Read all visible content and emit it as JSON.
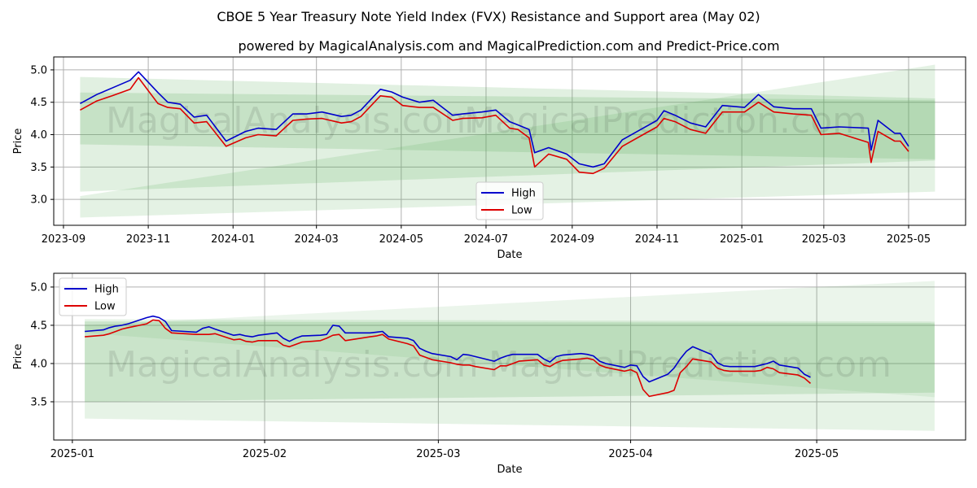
{
  "title": "CBOE 5 Year Treasury Note Yield Index (FVX) Resistance and Support area (May 02)",
  "subtitle": "powered by MagicalAnalysis.com and MagicalPrediction.com and Predict-Price.com",
  "watermark_left": "MagicalAnalysis.com",
  "watermark_right": "MagicalPrediction.com",
  "colors": {
    "high": "#0000cc",
    "low": "#dd0000",
    "band": "#5aac5a",
    "grid": "#b0b0b0"
  },
  "chart_data": [
    {
      "type": "line",
      "xlabel": "Date",
      "ylabel": "Price",
      "xlim": [
        "2023-08-25",
        "2025-06-11"
      ],
      "ylim": [
        2.6,
        5.2
      ],
      "yticks": [
        "3.0",
        "3.5",
        "4.0",
        "4.5",
        "5.0"
      ],
      "xticks": [
        {
          "date": "2023-09-01",
          "label": "2023-09"
        },
        {
          "date": "2023-11-01",
          "label": "2023-11"
        },
        {
          "date": "2024-01-01",
          "label": "2024-01"
        },
        {
          "date": "2024-03-01",
          "label": "2024-03"
        },
        {
          "date": "2024-05-01",
          "label": "2024-05"
        },
        {
          "date": "2024-07-01",
          "label": "2024-07"
        },
        {
          "date": "2024-09-01",
          "label": "2024-09"
        },
        {
          "date": "2024-11-01",
          "label": "2024-11"
        },
        {
          "date": "2025-01-01",
          "label": "2025-01"
        },
        {
          "date": "2025-03-01",
          "label": "2025-03"
        },
        {
          "date": "2025-05-01",
          "label": "2025-05"
        }
      ],
      "legend": {
        "position": "bottom-center",
        "entries": [
          "High",
          "Low"
        ]
      },
      "bands": [
        {
          "x": [
            "2023-09-13",
            "2025-05-20"
          ],
          "upper": [
            4.89,
            4.56
          ],
          "lower": [
            3.12,
            3.6
          ],
          "opacity": 0.18
        },
        {
          "x": [
            "2023-09-13",
            "2025-05-20"
          ],
          "upper": [
            4.65,
            4.53
          ],
          "lower": [
            3.85,
            3.62
          ],
          "opacity": 0.2
        },
        {
          "x": [
            "2023-09-13",
            "2025-05-20"
          ],
          "upper": [
            3.05,
            5.08
          ],
          "lower": [
            2.72,
            3.12
          ],
          "opacity": 0.16
        }
      ],
      "series": [
        {
          "name": "High",
          "x": [
            "2023-09-13",
            "2023-09-25",
            "2023-10-06",
            "2023-10-19",
            "2023-10-25",
            "2023-11-08",
            "2023-11-15",
            "2023-11-24",
            "2023-12-04",
            "2023-12-13",
            "2023-12-27",
            "2024-01-10",
            "2024-01-19",
            "2024-02-01",
            "2024-02-13",
            "2024-02-23",
            "2024-03-05",
            "2024-03-19",
            "2024-03-26",
            "2024-04-02",
            "2024-04-16",
            "2024-04-24",
            "2024-05-02",
            "2024-05-14",
            "2024-05-24",
            "2024-06-07",
            "2024-06-14",
            "2024-06-28",
            "2024-07-08",
            "2024-07-18",
            "2024-07-24",
            "2024-08-01",
            "2024-08-05",
            "2024-08-15",
            "2024-08-28",
            "2024-09-06",
            "2024-09-16",
            "2024-09-24",
            "2024-10-07",
            "2024-10-22",
            "2024-11-01",
            "2024-11-06",
            "2024-11-14",
            "2024-11-25",
            "2024-12-06",
            "2024-12-18",
            "2025-01-03",
            "2025-01-13",
            "2025-01-24",
            "2025-02-07",
            "2025-02-20",
            "2025-02-27",
            "2025-03-12",
            "2025-04-02",
            "2025-04-04",
            "2025-04-09",
            "2025-04-21",
            "2025-04-25",
            "2025-05-01"
          ],
          "values": [
            4.48,
            4.62,
            4.72,
            4.84,
            4.97,
            4.65,
            4.5,
            4.47,
            4.27,
            4.3,
            3.9,
            4.05,
            4.1,
            4.08,
            4.32,
            4.32,
            4.35,
            4.28,
            4.3,
            4.38,
            4.7,
            4.66,
            4.58,
            4.5,
            4.53,
            4.3,
            4.32,
            4.35,
            4.38,
            4.2,
            4.15,
            4.08,
            3.72,
            3.8,
            3.7,
            3.55,
            3.5,
            3.55,
            3.92,
            4.1,
            4.22,
            4.37,
            4.3,
            4.18,
            4.12,
            4.45,
            4.42,
            4.62,
            4.43,
            4.4,
            4.4,
            4.1,
            4.12,
            4.1,
            3.76,
            4.22,
            4.02,
            4.02,
            3.82
          ]
        },
        {
          "name": "Low",
          "x": [
            "2023-09-13",
            "2023-09-25",
            "2023-10-06",
            "2023-10-19",
            "2023-10-25",
            "2023-11-08",
            "2023-11-15",
            "2023-11-24",
            "2023-12-04",
            "2023-12-13",
            "2023-12-27",
            "2024-01-10",
            "2024-01-19",
            "2024-02-01",
            "2024-02-13",
            "2024-02-23",
            "2024-03-05",
            "2024-03-19",
            "2024-03-26",
            "2024-04-02",
            "2024-04-16",
            "2024-04-24",
            "2024-05-02",
            "2024-05-14",
            "2024-05-24",
            "2024-06-07",
            "2024-06-14",
            "2024-06-28",
            "2024-07-08",
            "2024-07-18",
            "2024-07-24",
            "2024-08-01",
            "2024-08-05",
            "2024-08-15",
            "2024-08-28",
            "2024-09-06",
            "2024-09-16",
            "2024-09-24",
            "2024-10-07",
            "2024-10-22",
            "2024-11-01",
            "2024-11-06",
            "2024-11-14",
            "2024-11-25",
            "2024-12-06",
            "2024-12-18",
            "2025-01-03",
            "2025-01-13",
            "2025-01-24",
            "2025-02-07",
            "2025-02-20",
            "2025-02-27",
            "2025-03-12",
            "2025-04-02",
            "2025-04-04",
            "2025-04-09",
            "2025-04-21",
            "2025-04-25",
            "2025-05-01"
          ],
          "values": [
            4.38,
            4.52,
            4.6,
            4.7,
            4.88,
            4.48,
            4.42,
            4.4,
            4.18,
            4.2,
            3.82,
            3.95,
            4.0,
            3.98,
            4.22,
            4.24,
            4.25,
            4.18,
            4.2,
            4.28,
            4.6,
            4.58,
            4.45,
            4.42,
            4.42,
            4.22,
            4.25,
            4.26,
            4.3,
            4.1,
            4.08,
            3.95,
            3.5,
            3.7,
            3.62,
            3.42,
            3.4,
            3.48,
            3.82,
            4.0,
            4.12,
            4.25,
            4.2,
            4.08,
            4.02,
            4.35,
            4.35,
            4.5,
            4.35,
            4.32,
            4.3,
            4.0,
            4.02,
            3.88,
            3.57,
            4.05,
            3.9,
            3.9,
            3.74
          ]
        }
      ]
    },
    {
      "type": "line",
      "xlabel": "Date",
      "ylabel": "Price",
      "xlim": [
        "2024-12-29",
        "2025-05-25"
      ],
      "ylim": [
        3.0,
        5.18
      ],
      "yticks": [
        "3.5",
        "4.0",
        "4.5",
        "5.0"
      ],
      "xticks": [
        {
          "date": "2025-01-01",
          "label": "2025-01"
        },
        {
          "date": "2025-02-01",
          "label": "2025-02"
        },
        {
          "date": "2025-03-01",
          "label": "2025-03"
        },
        {
          "date": "2025-04-01",
          "label": "2025-04"
        },
        {
          "date": "2025-05-01",
          "label": "2025-05"
        }
      ],
      "legend": {
        "position": "top-left",
        "entries": [
          "High",
          "Low"
        ]
      },
      "bands": [
        {
          "x": [
            "2025-01-03",
            "2025-05-20"
          ],
          "upper": [
            4.58,
            4.55
          ],
          "lower": [
            3.28,
            3.12
          ],
          "opacity": 0.15
        },
        {
          "x": [
            "2025-01-03",
            "2025-05-20"
          ],
          "upper": [
            4.55,
            4.53
          ],
          "lower": [
            3.5,
            3.62
          ],
          "opacity": 0.2
        },
        {
          "x": [
            "2025-01-03",
            "2025-05-20"
          ],
          "upper": [
            4.5,
            5.08
          ],
          "lower": [
            4.4,
            3.56
          ],
          "opacity": 0.12
        }
      ],
      "series": [
        {
          "name": "High",
          "x": [
            "2025-01-03",
            "2025-01-06",
            "2025-01-07",
            "2025-01-08",
            "2025-01-09",
            "2025-01-10",
            "2025-01-13",
            "2025-01-14",
            "2025-01-15",
            "2025-01-16",
            "2025-01-17",
            "2025-01-21",
            "2025-01-22",
            "2025-01-23",
            "2025-01-24",
            "2025-01-27",
            "2025-01-28",
            "2025-01-29",
            "2025-01-30",
            "2025-01-31",
            "2025-02-03",
            "2025-02-04",
            "2025-02-05",
            "2025-02-06",
            "2025-02-07",
            "2025-02-10",
            "2025-02-11",
            "2025-02-12",
            "2025-02-13",
            "2025-02-14",
            "2025-02-18",
            "2025-02-19",
            "2025-02-20",
            "2025-02-21",
            "2025-02-24",
            "2025-02-25",
            "2025-02-26",
            "2025-02-27",
            "2025-02-28",
            "2025-03-03",
            "2025-03-04",
            "2025-03-05",
            "2025-03-06",
            "2025-03-07",
            "2025-03-10",
            "2025-03-11",
            "2025-03-12",
            "2025-03-13",
            "2025-03-14",
            "2025-03-17",
            "2025-03-18",
            "2025-03-19",
            "2025-03-20",
            "2025-03-21",
            "2025-03-24",
            "2025-03-25",
            "2025-03-26",
            "2025-03-27",
            "2025-03-28",
            "2025-03-31",
            "2025-04-01",
            "2025-04-02",
            "2025-04-03",
            "2025-04-04",
            "2025-04-07",
            "2025-04-08",
            "2025-04-09",
            "2025-04-10",
            "2025-04-11",
            "2025-04-14",
            "2025-04-15",
            "2025-04-16",
            "2025-04-17",
            "2025-04-21",
            "2025-04-22",
            "2025-04-23",
            "2025-04-24",
            "2025-04-25",
            "2025-04-28",
            "2025-04-29",
            "2025-04-30"
          ],
          "values": [
            4.42,
            4.44,
            4.47,
            4.49,
            4.5,
            4.52,
            4.6,
            4.62,
            4.6,
            4.55,
            4.43,
            4.41,
            4.46,
            4.48,
            4.45,
            4.37,
            4.38,
            4.36,
            4.35,
            4.37,
            4.4,
            4.33,
            4.29,
            4.33,
            4.36,
            4.37,
            4.38,
            4.5,
            4.49,
            4.4,
            4.4,
            4.41,
            4.42,
            4.35,
            4.33,
            4.3,
            4.2,
            4.16,
            4.13,
            4.09,
            4.05,
            4.12,
            4.11,
            4.09,
            4.03,
            4.07,
            4.1,
            4.12,
            4.12,
            4.12,
            4.06,
            4.02,
            4.09,
            4.11,
            4.13,
            4.12,
            4.1,
            4.03,
            4.0,
            3.95,
            3.98,
            3.97,
            3.83,
            3.76,
            3.86,
            3.94,
            4.06,
            4.16,
            4.22,
            4.12,
            4.01,
            3.97,
            3.96,
            3.96,
            3.98,
            4.0,
            4.03,
            3.98,
            3.94,
            3.86,
            3.82
          ]
        },
        {
          "name": "Low",
          "x": [
            "2025-01-03",
            "2025-01-06",
            "2025-01-07",
            "2025-01-08",
            "2025-01-09",
            "2025-01-10",
            "2025-01-13",
            "2025-01-14",
            "2025-01-15",
            "2025-01-16",
            "2025-01-17",
            "2025-01-21",
            "2025-01-22",
            "2025-01-23",
            "2025-01-24",
            "2025-01-27",
            "2025-01-28",
            "2025-01-29",
            "2025-01-30",
            "2025-01-31",
            "2025-02-03",
            "2025-02-04",
            "2025-02-05",
            "2025-02-06",
            "2025-02-07",
            "2025-02-10",
            "2025-02-11",
            "2025-02-12",
            "2025-02-13",
            "2025-02-14",
            "2025-02-18",
            "2025-02-19",
            "2025-02-20",
            "2025-02-21",
            "2025-02-24",
            "2025-02-25",
            "2025-02-26",
            "2025-02-27",
            "2025-02-28",
            "2025-03-03",
            "2025-03-04",
            "2025-03-05",
            "2025-03-06",
            "2025-03-07",
            "2025-03-10",
            "2025-03-11",
            "2025-03-12",
            "2025-03-13",
            "2025-03-14",
            "2025-03-17",
            "2025-03-18",
            "2025-03-19",
            "2025-03-20",
            "2025-03-21",
            "2025-03-24",
            "2025-03-25",
            "2025-03-26",
            "2025-03-27",
            "2025-03-28",
            "2025-03-31",
            "2025-04-01",
            "2025-04-02",
            "2025-04-03",
            "2025-04-04",
            "2025-04-07",
            "2025-04-08",
            "2025-04-09",
            "2025-04-10",
            "2025-04-11",
            "2025-04-14",
            "2025-04-15",
            "2025-04-16",
            "2025-04-17",
            "2025-04-21",
            "2025-04-22",
            "2025-04-23",
            "2025-04-24",
            "2025-04-25",
            "2025-04-28",
            "2025-04-29",
            "2025-04-30"
          ],
          "values": [
            4.35,
            4.37,
            4.39,
            4.42,
            4.45,
            4.47,
            4.52,
            4.57,
            4.56,
            4.46,
            4.4,
            4.38,
            4.38,
            4.38,
            4.39,
            4.31,
            4.32,
            4.29,
            4.28,
            4.3,
            4.3,
            4.24,
            4.22,
            4.25,
            4.28,
            4.3,
            4.33,
            4.37,
            4.38,
            4.3,
            4.35,
            4.36,
            4.38,
            4.32,
            4.26,
            4.23,
            4.11,
            4.08,
            4.05,
            4.01,
            3.99,
            3.98,
            3.98,
            3.96,
            3.92,
            3.97,
            3.97,
            4.0,
            4.03,
            4.05,
            3.98,
            3.96,
            4.01,
            4.04,
            4.06,
            4.07,
            4.05,
            3.98,
            3.95,
            3.9,
            3.92,
            3.88,
            3.66,
            3.57,
            3.62,
            3.65,
            3.88,
            3.96,
            4.06,
            4.02,
            3.94,
            3.91,
            3.9,
            3.9,
            3.91,
            3.95,
            3.93,
            3.88,
            3.85,
            3.81,
            3.74
          ]
        }
      ]
    }
  ]
}
